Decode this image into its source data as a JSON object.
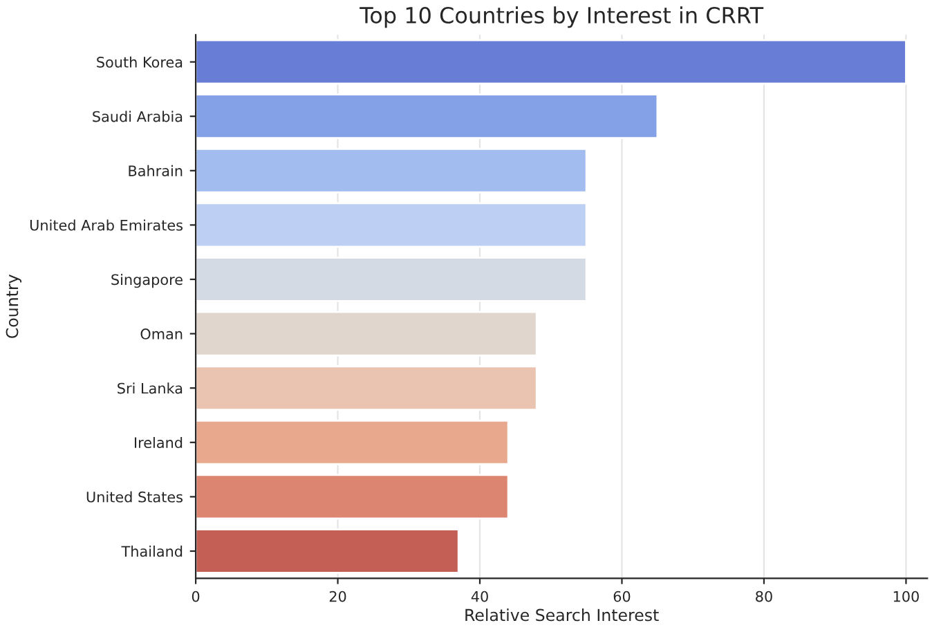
{
  "chart_data": {
    "type": "bar",
    "orientation": "horizontal",
    "title": "Top 10 Countries by Interest in CRRT",
    "xlabel": "Relative Search Interest",
    "ylabel": "Country",
    "categories": [
      "South Korea",
      "Saudi Arabia",
      "Bahrain",
      "United Arab Emirates",
      "Singapore",
      "Oman",
      "Sri Lanka",
      "Ireland",
      "United States",
      "Thailand"
    ],
    "values": [
      100,
      65,
      55,
      55,
      55,
      48,
      48,
      44,
      44,
      37
    ],
    "colors": [
      "#687dd5",
      "#84a0e6",
      "#a2bcf0",
      "#bdcff2",
      "#d4dae3",
      "#e1d6cd",
      "#eac4b0",
      "#e7a88d",
      "#dc8672",
      "#c45f55"
    ],
    "xlim": [
      0,
      103
    ],
    "xticks": [
      0,
      20,
      40,
      60,
      80,
      100
    ],
    "grid": "x"
  }
}
